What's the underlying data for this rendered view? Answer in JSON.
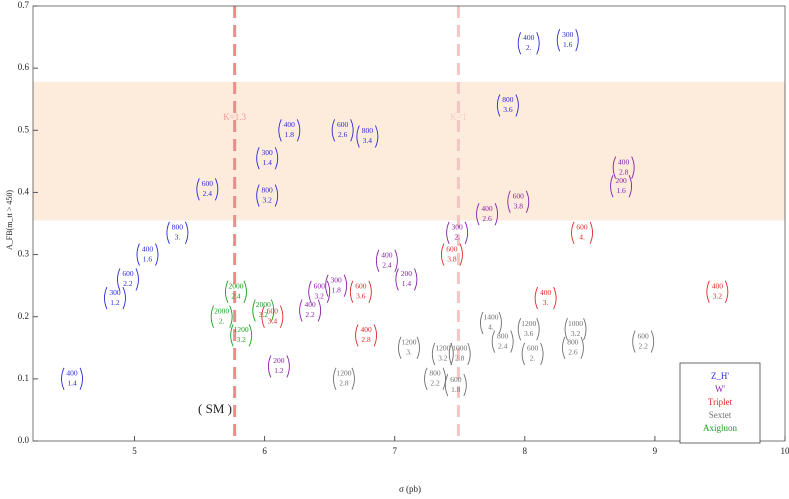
{
  "chart_data": {
    "type": "scatter",
    "xlabel": "σ (pb)",
    "ylabel": "A_FB(m_tt > 450)",
    "xlim": [
      4.22,
      10
    ],
    "ylim": [
      0,
      0.7
    ],
    "xticks": [
      5,
      6,
      7,
      8,
      9,
      10
    ],
    "yticks": [
      {
        "value": 0,
        "label": "0.0"
      },
      0.1,
      0.2,
      0.3,
      0.4,
      0.5,
      0.6,
      0.7
    ],
    "band": [
      0.355,
      0.578
    ],
    "band_color": "#fdebdc",
    "vlines": [
      {
        "x": 5.77,
        "label": "K=1.3",
        "color": "#f08a8a"
      },
      {
        "x": 7.49,
        "label": "K=1",
        "color": "#f5c4c4"
      }
    ],
    "annotation": "( SM )",
    "legend": "lower right",
    "series": [
      {
        "name": "Z_H'",
        "color": "#2a2ad8",
        "x": [
          4.52,
          4.85,
          4.95,
          5.1,
          5.33,
          5.56,
          6.02,
          6.02,
          6.19,
          6.6,
          6.79,
          7.87,
          8.03,
          8.33
        ],
        "values": [
          0.1,
          0.23,
          0.26,
          0.3,
          0.335,
          0.405,
          0.455,
          0.395,
          0.5,
          0.5,
          0.49,
          0.54,
          0.64,
          0.645
        ],
        "labels": [
          [
            "400",
            "1.4"
          ],
          [
            "300",
            "1.2"
          ],
          [
            "600",
            "2.2"
          ],
          [
            "400",
            "1.6"
          ],
          [
            "800",
            "3."
          ],
          [
            "600",
            "2.4"
          ],
          [
            "300",
            "1.4"
          ],
          [
            "800",
            "3.2"
          ],
          [
            "400",
            "1.8"
          ],
          [
            "600",
            "2.6"
          ],
          [
            "800",
            "3.4"
          ],
          [
            "800",
            "3.6"
          ],
          [
            "400",
            "2."
          ],
          [
            "300",
            "1.6"
          ]
        ]
      },
      {
        "name": "W'",
        "color": "#8a1fa8",
        "x": [
          7.48,
          7.71,
          7.95,
          8.76,
          8.74,
          6.94,
          7.09,
          6.55,
          6.42,
          6.35,
          6.11
        ],
        "values": [
          0.335,
          0.365,
          0.385,
          0.44,
          0.41,
          0.29,
          0.26,
          0.25,
          0.24,
          0.21,
          0.12
        ],
        "labels": [
          [
            "300",
            "2."
          ],
          [
            "400",
            "2.6"
          ],
          [
            "600",
            "3.8"
          ],
          [
            "400",
            "2.8"
          ],
          [
            "200",
            "1.6"
          ],
          [
            "400",
            "2.4"
          ],
          [
            "200",
            "1.4"
          ],
          [
            "300",
            "1.8"
          ],
          [
            "600",
            "3.2"
          ],
          [
            "400",
            "2.2"
          ],
          [
            "200",
            "1.2"
          ]
        ]
      },
      {
        "name": "Triplet",
        "color": "#e02828",
        "x": [
          7.44,
          8.44,
          6.74,
          6.06,
          6.78,
          8.16,
          9.48
        ],
        "values": [
          0.3,
          0.335,
          0.24,
          0.2,
          0.17,
          0.23,
          0.24
        ],
        "labels": [
          [
            "600",
            "3.8"
          ],
          [
            "600",
            "4."
          ],
          [
            "600",
            "3.6"
          ],
          [
            "600",
            "3.4"
          ],
          [
            "400",
            "2.8"
          ],
          [
            "400",
            "3."
          ],
          [
            "400",
            "3.2"
          ]
        ]
      },
      {
        "name": "Sextet",
        "color": "#707070",
        "x": [
          7.74,
          8.03,
          7.83,
          8.06,
          8.39,
          8.37,
          8.91,
          7.11,
          7.37,
          7.5,
          6.61,
          7.31,
          7.47
        ],
        "values": [
          0.19,
          0.18,
          0.16,
          0.14,
          0.18,
          0.15,
          0.16,
          0.15,
          0.14,
          0.14,
          0.1,
          0.1,
          0.09
        ],
        "labels": [
          [
            "1400",
            "4."
          ],
          [
            "1200",
            "3.6"
          ],
          [
            "800",
            "2.4"
          ],
          [
            "600",
            "2."
          ],
          [
            "1000",
            "3.2"
          ],
          [
            "800",
            "2.6"
          ],
          [
            "600",
            "2.2"
          ],
          [
            "1200",
            "3."
          ],
          [
            "1200",
            "3.2"
          ],
          [
            "1000",
            "2.8"
          ],
          [
            "1200",
            "2.8"
          ],
          [
            "800",
            "2.2"
          ],
          [
            "600",
            "1.8"
          ]
        ]
      },
      {
        "name": "Axigluon",
        "color": "#1aa01a",
        "x": [
          5.78,
          5.67,
          5.99,
          5.82
        ],
        "values": [
          0.24,
          0.2,
          0.21,
          0.17
        ],
        "labels": [
          [
            "2000",
            "2.4"
          ],
          [
            "2000",
            "2."
          ],
          [
            "2000",
            "3.2"
          ],
          [
            "1200",
            "3.2"
          ]
        ]
      }
    ]
  }
}
